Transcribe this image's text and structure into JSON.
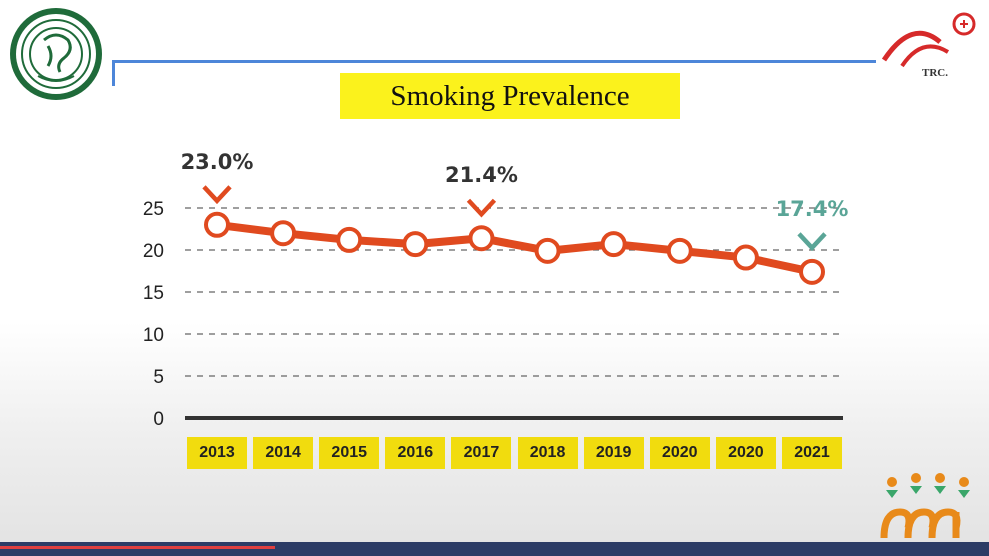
{
  "header": {
    "title": "Smoking Prevalence",
    "right_logo_text": "TRC."
  },
  "colors": {
    "line": "#e04a1f",
    "highlight_label": "#5aa597",
    "title_bg": "#fbf21c",
    "category_bg": "#f1dc0e",
    "rule": "#4d86d9"
  },
  "chart_data": {
    "type": "line",
    "title": "Smoking Prevalence",
    "categories": [
      "2013",
      "2014",
      "2015",
      "2016",
      "2017",
      "2018",
      "2019",
      "2020",
      "2020",
      "2021"
    ],
    "series": [
      {
        "values": [
          23.0,
          22.0,
          21.2,
          20.7,
          21.4,
          19.9,
          20.7,
          19.9,
          19.1,
          17.4
        ]
      }
    ],
    "yticks": [
      0,
      5,
      10,
      15,
      20,
      25
    ],
    "ylim": [
      0,
      25
    ],
    "grid": true,
    "annotations": [
      {
        "index": 0,
        "text": "23.0%",
        "color": "#333333"
      },
      {
        "index": 4,
        "text": "21.4%",
        "color": "#333333"
      },
      {
        "index": 9,
        "text": "17.4%",
        "color": "#5aa597"
      }
    ]
  }
}
